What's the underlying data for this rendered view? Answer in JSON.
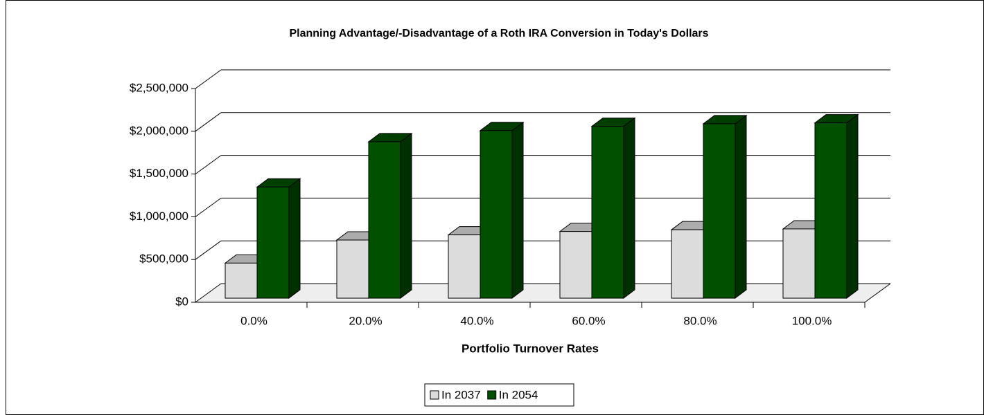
{
  "chart_data": {
    "type": "bar3d",
    "title": "Planning Advantage/-Disadvantage of a Roth IRA Conversion in Today's Dollars",
    "x_label": "Portfolio Turnover Rates",
    "categories": [
      "0.0%",
      "20.0%",
      "40.0%",
      "60.0%",
      "80.0%",
      "100.0%"
    ],
    "series": [
      {
        "name": "In 2037",
        "color": "#dcdcdc",
        "values": [
          410000,
          680000,
          740000,
          780000,
          800000,
          810000
        ]
      },
      {
        "name": "In 2054",
        "color": "#005000",
        "values": [
          1300000,
          1830000,
          1960000,
          2010000,
          2040000,
          2050000
        ]
      }
    ],
    "ylim": [
      0,
      2500000
    ],
    "yticks": [
      {
        "value": 0,
        "label": "$0"
      },
      {
        "value": 500000,
        "label": "$500,000"
      },
      {
        "value": 1000000,
        "label": "$1,000,000"
      },
      {
        "value": 1500000,
        "label": "$1,500,000"
      },
      {
        "value": 2000000,
        "label": "$2,000,000"
      },
      {
        "value": 2500000,
        "label": "$2,500,000"
      }
    ],
    "grid": true,
    "legend": "bottom"
  }
}
